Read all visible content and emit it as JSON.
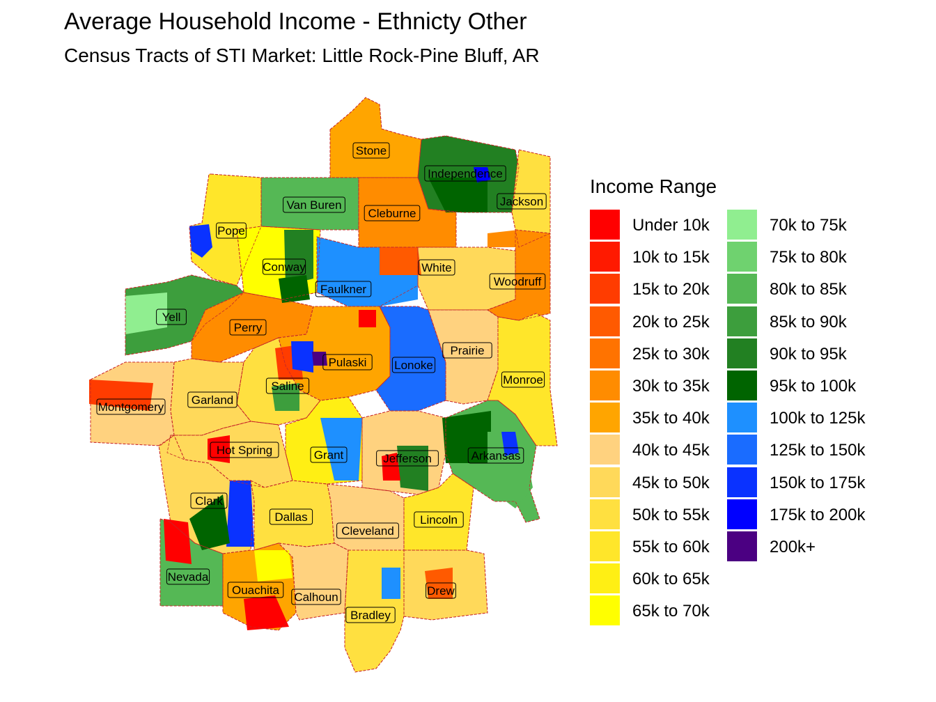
{
  "title": "Average Household Income - Ethnicty Other",
  "subtitle": "Census Tracts of STI Market: Little Rock-Pine Bluff, AR",
  "legend": {
    "title": "Income Range",
    "items": [
      {
        "label": "Under 10k",
        "color": "#ff0000"
      },
      {
        "label": "10k to 15k",
        "color": "#ff1a00"
      },
      {
        "label": "15k to 20k",
        "color": "#ff3c00"
      },
      {
        "label": "20k to 25k",
        "color": "#ff5a00"
      },
      {
        "label": "25k to 30k",
        "color": "#ff7300"
      },
      {
        "label": "30k to 35k",
        "color": "#ff8c00"
      },
      {
        "label": "35k to 40k",
        "color": "#ffa500"
      },
      {
        "label": "40k to 45k",
        "color": "#ffd27f"
      },
      {
        "label": "45k to 50k",
        "color": "#ffd95a"
      },
      {
        "label": "50k to 55k",
        "color": "#ffe040"
      },
      {
        "label": "55k to 60k",
        "color": "#ffe62a"
      },
      {
        "label": "60k to 65k",
        "color": "#ffef14"
      },
      {
        "label": "65k to 70k",
        "color": "#ffff00"
      },
      {
        "label": "70k to 75k",
        "color": "#90ee90"
      },
      {
        "label": "75k to 80k",
        "color": "#6fd26f"
      },
      {
        "label": "80k to 85k",
        "color": "#55b855"
      },
      {
        "label": "85k to 90k",
        "color": "#3d9e3d"
      },
      {
        "label": "90k to 95k",
        "color": "#228022"
      },
      {
        "label": "95k to 100k",
        "color": "#006400"
      },
      {
        "label": "100k to 125k",
        "color": "#1e90ff"
      },
      {
        "label": "125k to 150k",
        "color": "#1a6cff"
      },
      {
        "label": "150k to 175k",
        "color": "#0a32ff"
      },
      {
        "label": "175k to 200k",
        "color": "#0000ff"
      },
      {
        "label": "200k+",
        "color": "#4b0082"
      }
    ]
  },
  "counties": [
    {
      "name": "Stone",
      "color": "#ffa500"
    },
    {
      "name": "Independence",
      "color": "#228022"
    },
    {
      "name": "Van Buren",
      "color": "#55b855"
    },
    {
      "name": "Cleburne",
      "color": "#ff8c00"
    },
    {
      "name": "Jackson",
      "color": "#ffe040"
    },
    {
      "name": "Pope",
      "color": "#ffe62a"
    },
    {
      "name": "Conway",
      "color": "#ffff00"
    },
    {
      "name": "White",
      "color": "#ffd95a"
    },
    {
      "name": "Faulkner",
      "color": "#1e90ff"
    },
    {
      "name": "Woodruff",
      "color": "#ff8c00"
    },
    {
      "name": "Yell",
      "color": "#3d9e3d"
    },
    {
      "name": "Perry",
      "color": "#ff8c00"
    },
    {
      "name": "Prairie",
      "color": "#ffd27f"
    },
    {
      "name": "Pulaski",
      "color": "#ffa500"
    },
    {
      "name": "Lonoke",
      "color": "#1a6cff"
    },
    {
      "name": "Monroe",
      "color": "#ffe62a"
    },
    {
      "name": "Saline",
      "color": "#ffe040"
    },
    {
      "name": "Garland",
      "color": "#ffd95a"
    },
    {
      "name": "Montgomery",
      "color": "#ffd27f"
    },
    {
      "name": "Hot Spring",
      "color": "#ffd95a"
    },
    {
      "name": "Grant",
      "color": "#ffef14"
    },
    {
      "name": "Jefferson",
      "color": "#ffd27f"
    },
    {
      "name": "Arkansas",
      "color": "#55b855"
    },
    {
      "name": "Clark",
      "color": "#ffd95a"
    },
    {
      "name": "Dallas",
      "color": "#ffe040"
    },
    {
      "name": "Cleveland",
      "color": "#ffd27f"
    },
    {
      "name": "Lincoln",
      "color": "#ffe62a"
    },
    {
      "name": "Nevada",
      "color": "#55b855"
    },
    {
      "name": "Ouachita",
      "color": "#ffa500"
    },
    {
      "name": "Calhoun",
      "color": "#ffd27f"
    },
    {
      "name": "Drew",
      "color": "#ffd95a"
    },
    {
      "name": "Bradley",
      "color": "#ffe040"
    }
  ]
}
